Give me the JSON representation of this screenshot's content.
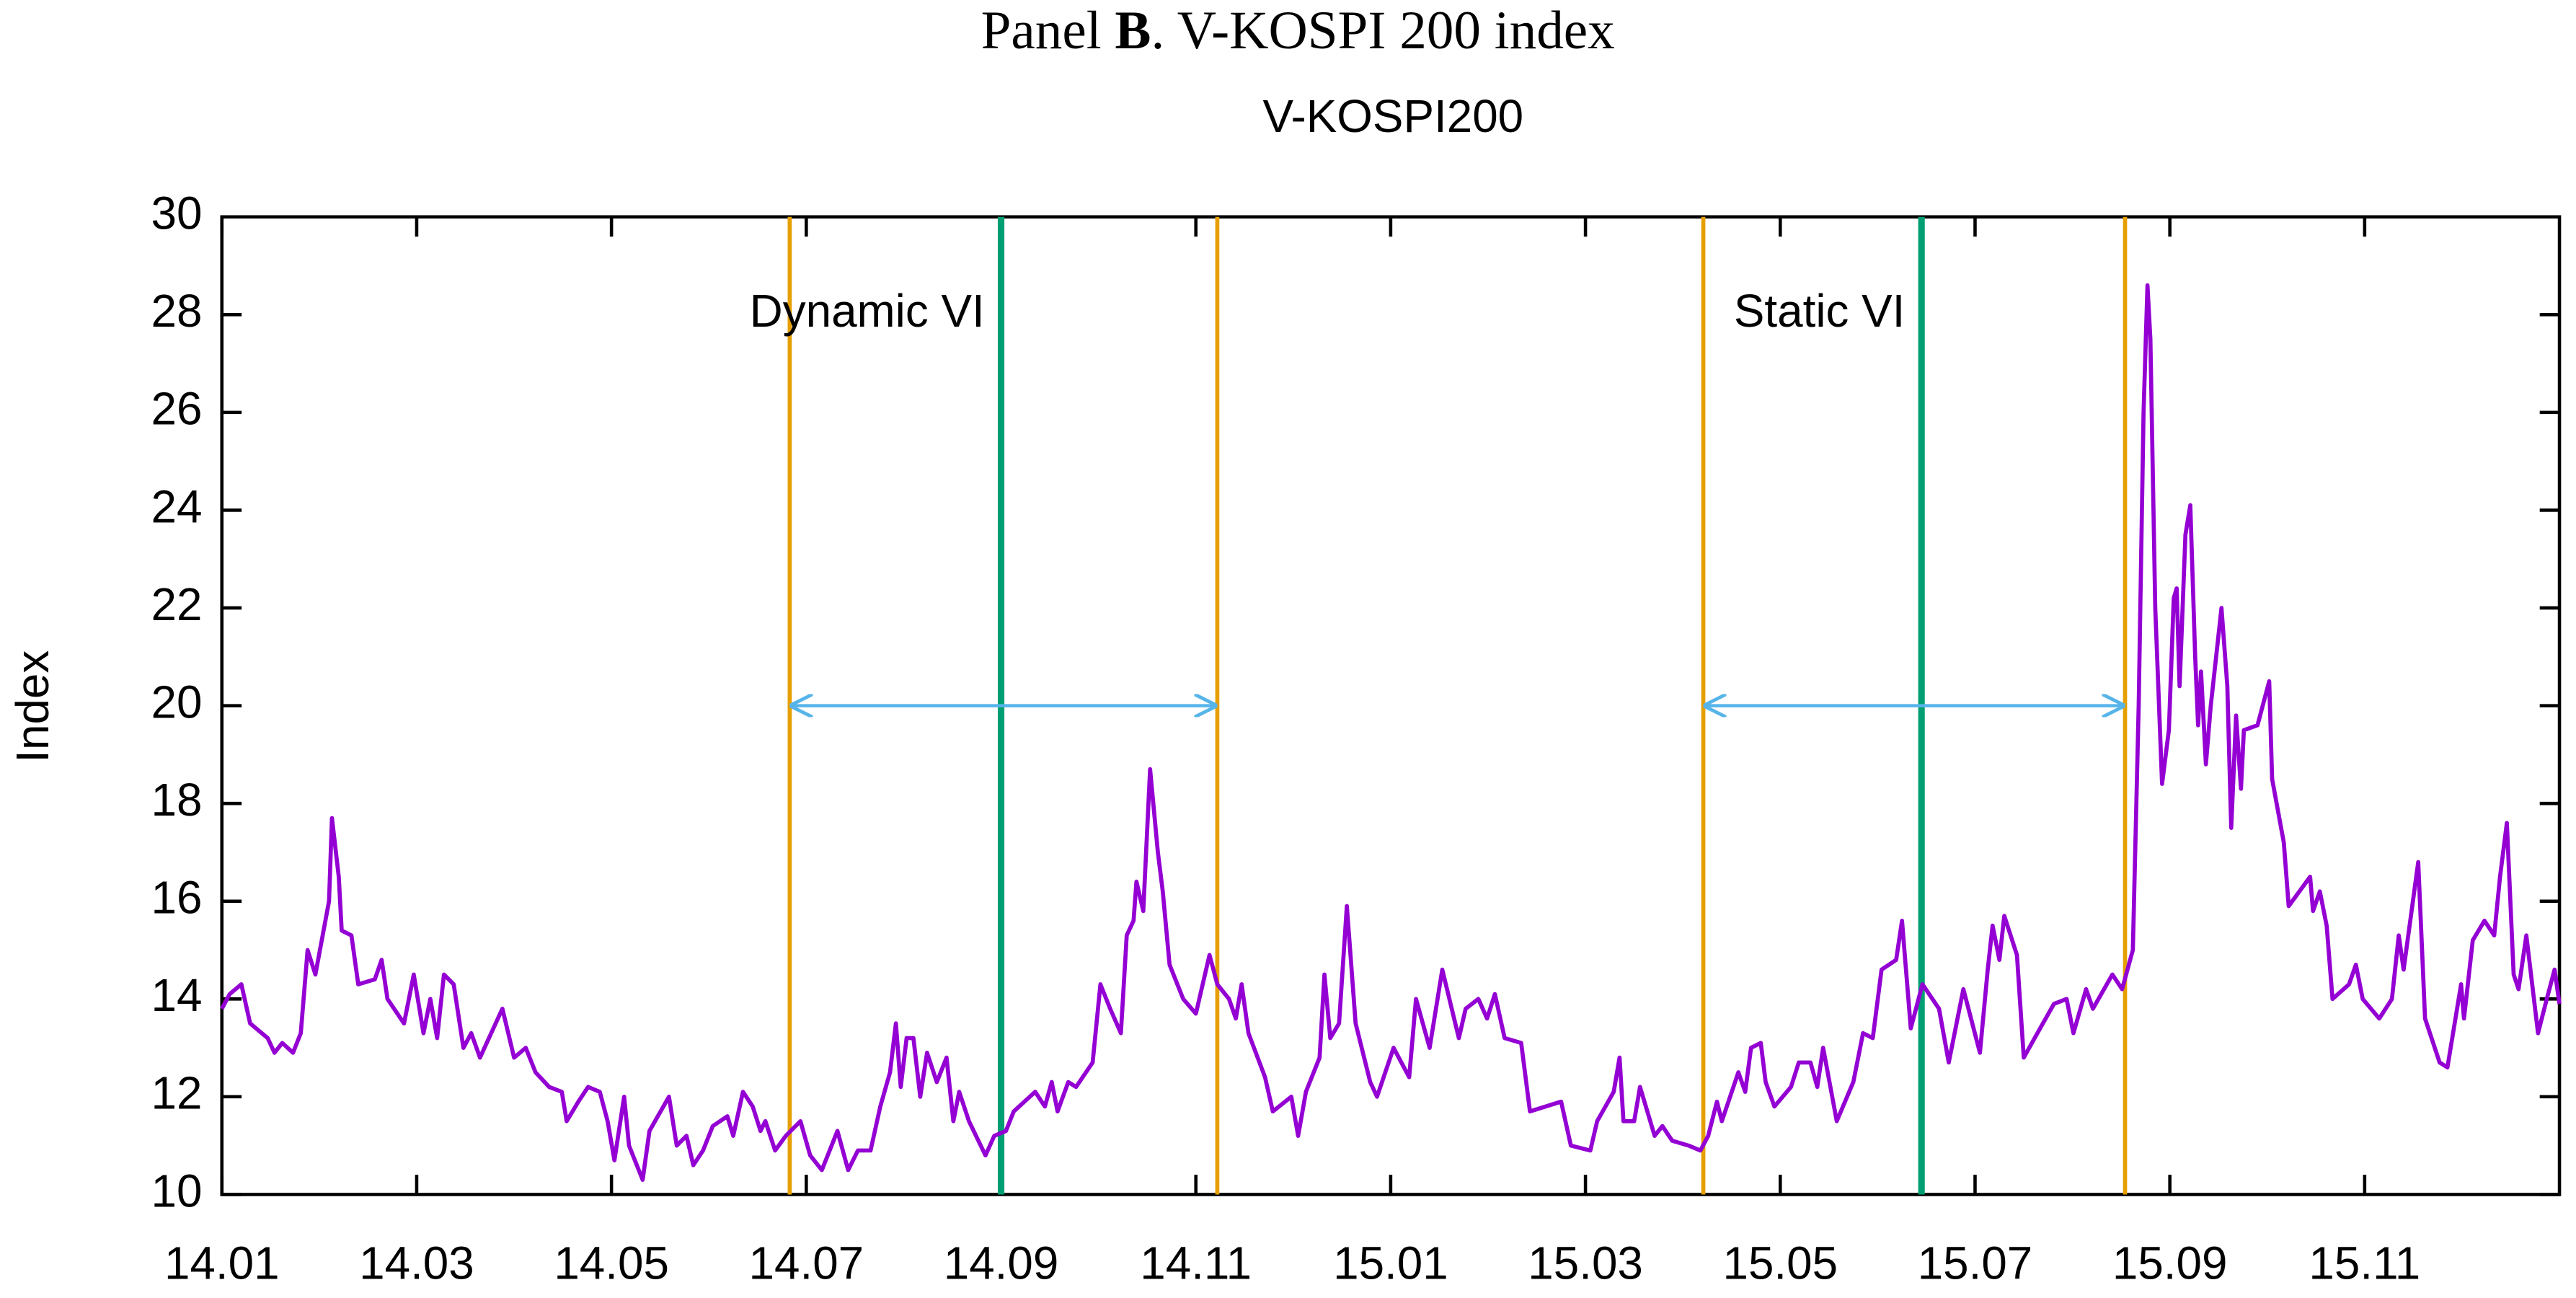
{
  "chart_data": {
    "type": "line",
    "title": [
      "Panel ",
      "B",
      ". V-KOSPI 200 index"
    ],
    "subtitle": "V-KOSPI200",
    "y_label": "Index",
    "xlim": [
      0,
      24
    ],
    "ylim": [
      10,
      30
    ],
    "yticks": [
      10,
      12,
      14,
      16,
      18,
      20,
      22,
      24,
      26,
      28,
      30
    ],
    "xticks": [
      {
        "value": 0,
        "label": "14.01"
      },
      {
        "value": 2,
        "label": "14.03"
      },
      {
        "value": 4,
        "label": "14.05"
      },
      {
        "value": 6,
        "label": "14.07"
      },
      {
        "value": 8,
        "label": "14.09"
      },
      {
        "value": 10,
        "label": "14.11"
      },
      {
        "value": 12,
        "label": "15.01"
      },
      {
        "value": 14,
        "label": "15.03"
      },
      {
        "value": 16,
        "label": "15.05"
      },
      {
        "value": 18,
        "label": "15.07"
      },
      {
        "value": 20,
        "label": "15.09"
      },
      {
        "value": 22,
        "label": "15.11"
      }
    ],
    "events": [
      {
        "label": "Dynamic VI",
        "start": 5.83,
        "mid": 8.0,
        "end": 10.22,
        "arrow_y": 20
      },
      {
        "label": "Static VI",
        "start": 15.21,
        "mid": 17.45,
        "end": 19.54,
        "arrow_y": 20
      }
    ],
    "event_colors": {
      "bound": "#e69f00",
      "mid": "#009e73",
      "arrow": "#56b4e9"
    },
    "x": [
      0,
      0.08,
      0.2,
      0.29,
      0.47,
      0.54,
      0.62,
      0.73,
      0.81,
      0.88,
      0.96,
      1.1,
      1.13,
      1.2,
      1.23,
      1.33,
      1.4,
      1.57,
      1.64,
      1.7,
      1.87,
      1.97,
      2.07,
      2.14,
      2.21,
      2.28,
      2.38,
      2.48,
      2.56,
      2.65,
      2.88,
      3,
      3.12,
      3.22,
      3.36,
      3.49,
      3.54,
      3.66,
      3.76,
      3.88,
      3.96,
      4.03,
      4.13,
      4.18,
      4.32,
      4.39,
      4.59,
      4.67,
      4.77,
      4.84,
      4.94,
      5.04,
      5.19,
      5.25,
      5.35,
      5.45,
      5.53,
      5.58,
      5.68,
      5.79,
      5.94,
      6.04,
      6.16,
      6.32,
      6.43,
      6.53,
      6.66,
      6.76,
      6.86,
      6.92,
      6.97,
      7.03,
      7.1,
      7.17,
      7.24,
      7.34,
      7.44,
      7.51,
      7.57,
      7.67,
      7.84,
      7.93,
      8.05,
      8.13,
      8.35,
      8.45,
      8.52,
      8.58,
      8.69,
      8.77,
      8.94,
      9.02,
      9.12,
      9.23,
      9.29,
      9.36,
      9.39,
      9.46,
      9.53,
      9.61,
      9.66,
      9.73,
      9.87,
      10,
      10.14,
      10.22,
      10.34,
      10.41,
      10.47,
      10.54,
      10.71,
      10.79,
      10.98,
      11.05,
      11.13,
      11.27,
      11.32,
      11.38,
      11.47,
      11.55,
      11.64,
      11.79,
      11.86,
      12.03,
      12.19,
      12.26,
      12.4,
      12.53,
      12.7,
      12.77,
      12.9,
      12.99,
      13.07,
      13.17,
      13.34,
      13.43,
      13.75,
      13.85,
      14.05,
      14.12,
      14.29,
      14.35,
      14.39,
      14.5,
      14.56,
      14.71,
      14.79,
      14.89,
      15.06,
      15.18,
      15.26,
      15.35,
      15.4,
      15.57,
      15.64,
      15.7,
      15.8,
      15.85,
      15.94,
      16.11,
      16.19,
      16.31,
      16.38,
      16.44,
      16.58,
      16.75,
      16.85,
      16.95,
      17.04,
      17.19,
      17.25,
      17.34,
      17.46,
      17.63,
      17.73,
      17.88,
      18.05,
      18.13,
      18.18,
      18.25,
      18.3,
      18.43,
      18.5,
      18.64,
      18.81,
      18.94,
      19.01,
      19.14,
      19.21,
      19.41,
      19.51,
      19.62,
      19.68,
      19.73,
      19.77,
      19.8,
      19.85,
      19.92,
      19.99,
      20.04,
      20.07,
      20.1,
      20.16,
      20.21,
      20.26,
      20.29,
      20.32,
      20.37,
      20.42,
      20.53,
      20.59,
      20.63,
      20.68,
      20.73,
      20.76,
      20.9,
      21.02,
      21.05,
      21.17,
      21.22,
      21.44,
      21.47,
      21.54,
      21.61,
      21.67,
      21.84,
      21.91,
      21.98,
      22.15,
      22.28,
      22.35,
      22.4,
      22.55,
      22.62,
      22.77,
      22.85,
      22.99,
      23.02,
      23.11,
      23.23,
      23.33,
      23.39,
      23.46,
      23.53,
      23.58,
      23.66,
      23.78,
      23.87,
      23.95,
      24
    ],
    "series": [
      {
        "name": "V-KOSPI200",
        "color": "#9400d3",
        "values": [
          13.8,
          14.1,
          14.3,
          13.5,
          13.2,
          12.9,
          13.1,
          12.9,
          13.3,
          15,
          14.5,
          16,
          17.7,
          16.5,
          15.4,
          15.3,
          14.3,
          14.4,
          14.8,
          14,
          13.5,
          14.5,
          13.3,
          14,
          13.2,
          14.5,
          14.3,
          13,
          13.3,
          12.8,
          13.8,
          12.8,
          13,
          12.5,
          12.2,
          12.1,
          11.5,
          11.9,
          12.2,
          12.1,
          11.5,
          10.7,
          12,
          11,
          10.3,
          11.3,
          12,
          11,
          11.2,
          10.6,
          10.9,
          11.4,
          11.6,
          11.2,
          12.1,
          11.8,
          11.3,
          11.5,
          10.9,
          11.2,
          11.5,
          10.8,
          10.5,
          11.3,
          10.5,
          10.9,
          10.9,
          11.8,
          12.5,
          13.5,
          12.2,
          13.2,
          13.2,
          12,
          12.9,
          12.3,
          12.8,
          11.5,
          12.1,
          11.5,
          10.8,
          11.2,
          11.3,
          11.7,
          12.1,
          11.8,
          12.3,
          11.7,
          12.3,
          12.2,
          12.7,
          14.3,
          13.8,
          13.3,
          15.3,
          15.6,
          16.4,
          15.8,
          18.7,
          17,
          16.2,
          14.7,
          14,
          13.7,
          14.9,
          14.3,
          14,
          13.6,
          14.3,
          13.3,
          12.4,
          11.7,
          12,
          11.2,
          12.1,
          12.8,
          14.5,
          13.2,
          13.5,
          15.9,
          13.5,
          12.3,
          12,
          13,
          12.4,
          14,
          13,
          14.6,
          13.2,
          13.8,
          14,
          13.6,
          14.1,
          13.2,
          13.1,
          11.7,
          11.9,
          11,
          10.9,
          11.5,
          12.1,
          12.8,
          11.5,
          11.5,
          12.2,
          11.2,
          11.4,
          11.1,
          11,
          10.9,
          11.2,
          11.9,
          11.5,
          12.5,
          12.1,
          13,
          13.1,
          12.3,
          11.8,
          12.2,
          12.7,
          12.7,
          12.2,
          13,
          11.5,
          12.3,
          13.3,
          13.2,
          14.6,
          14.8,
          15.6,
          13.4,
          14.3,
          13.8,
          12.7,
          14.2,
          12.9,
          14.6,
          15.5,
          14.8,
          15.7,
          14.9,
          12.8,
          13.3,
          13.9,
          14,
          13.3,
          14.2,
          13.8,
          14.5,
          14.2,
          15,
          20,
          26,
          28.6,
          27.5,
          22,
          18.4,
          19.5,
          22.2,
          22.4,
          20.4,
          23.5,
          24.1,
          21,
          19.6,
          20.7,
          18.8,
          20,
          22,
          20.4,
          17.5,
          19.8,
          18.3,
          19.5,
          19.6,
          20.5,
          18.5,
          17.2,
          15.9,
          16.5,
          15.8,
          16.2,
          15.5,
          14,
          14.3,
          14.7,
          14,
          13.6,
          14,
          15.3,
          14.6,
          16.8,
          13.6,
          12.7,
          12.6,
          14.3,
          13.6,
          15.2,
          15.6,
          15.3,
          16.5,
          17.6,
          14.5,
          14.2,
          15.3,
          13.3,
          14,
          14.6,
          13.9
        ]
      }
    ]
  }
}
